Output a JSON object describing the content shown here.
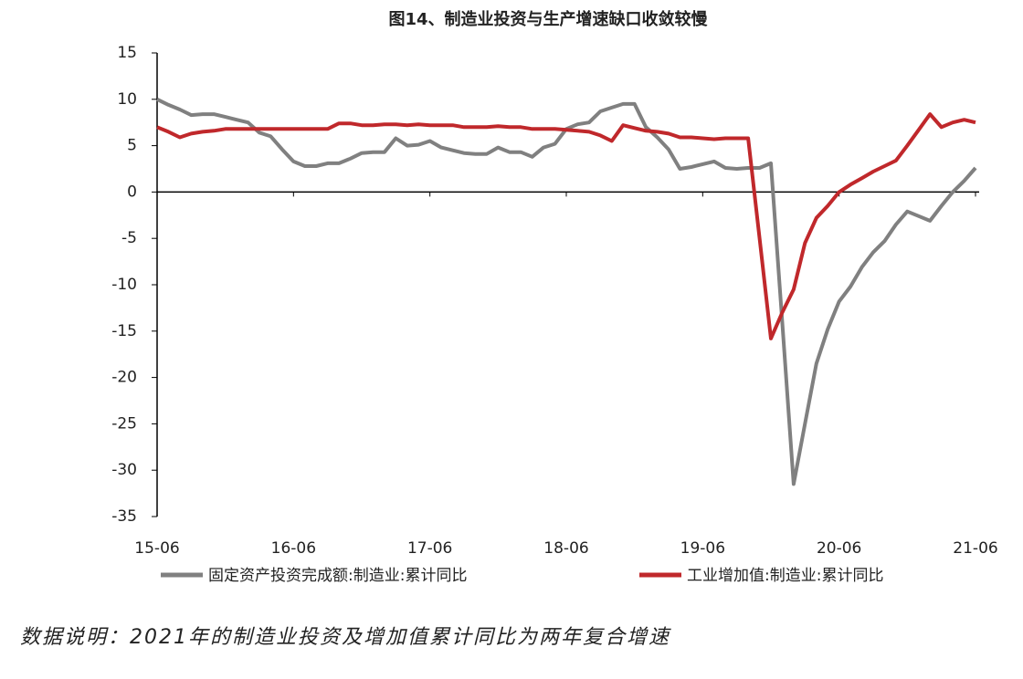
{
  "chart_data": {
    "type": "line",
    "title": "图14、制造业投资与生产增速缺口收敛较慢",
    "categories": [
      "15-06",
      null,
      null,
      null,
      null,
      null,
      null,
      null,
      null,
      null,
      null,
      null,
      "16-06",
      null,
      null,
      null,
      null,
      null,
      null,
      null,
      null,
      null,
      null,
      null,
      "17-06",
      null,
      null,
      null,
      null,
      null,
      null,
      null,
      null,
      null,
      null,
      null,
      "18-06",
      null,
      null,
      null,
      null,
      null,
      null,
      null,
      null,
      null,
      null,
      null,
      "19-06",
      null,
      null,
      null,
      null,
      null,
      null,
      null,
      null,
      null,
      null,
      null,
      "20-06",
      null,
      null,
      null,
      null,
      null,
      null,
      null,
      null,
      null,
      null,
      null,
      "21-06"
    ],
    "series": [
      {
        "name": "固定资产投资完成额:制造业:累计同比",
        "color": "#808080",
        "values": [
          10.0,
          9.4,
          8.9,
          8.3,
          8.4,
          8.4,
          8.1,
          7.8,
          7.5,
          6.4,
          6.0,
          4.6,
          3.3,
          2.8,
          2.8,
          3.1,
          3.1,
          3.6,
          4.2,
          4.3,
          4.3,
          5.8,
          5.0,
          5.1,
          5.5,
          4.8,
          4.5,
          4.2,
          4.1,
          4.1,
          4.8,
          4.3,
          4.3,
          3.8,
          4.8,
          5.2,
          6.8,
          7.3,
          7.5,
          8.7,
          9.1,
          9.5,
          9.5,
          7.0,
          5.9,
          4.6,
          2.5,
          2.7,
          3.0,
          3.3,
          2.6,
          2.5,
          2.6,
          2.6,
          3.1,
          -14.0,
          -31.5,
          -25.0,
          -18.5,
          -14.8,
          -11.8,
          -10.2,
          -8.1,
          -6.5,
          -5.3,
          -3.5,
          -2.1,
          -2.6,
          -3.1,
          -1.5,
          0.0,
          1.2,
          2.6
        ]
      },
      {
        "name": "工业增加值:制造业:累计同比",
        "color": "#c0282b",
        "values": [
          7.0,
          6.5,
          5.9,
          6.3,
          6.5,
          6.6,
          6.8,
          6.8,
          6.8,
          6.8,
          6.8,
          6.8,
          6.8,
          6.8,
          6.8,
          6.8,
          7.4,
          7.4,
          7.2,
          7.2,
          7.3,
          7.3,
          7.2,
          7.3,
          7.2,
          7.2,
          7.2,
          7.0,
          7.0,
          7.0,
          7.1,
          7.0,
          7.0,
          6.8,
          6.8,
          6.8,
          6.7,
          6.6,
          6.5,
          6.1,
          5.5,
          7.2,
          6.9,
          6.6,
          6.5,
          6.3,
          5.9,
          5.9,
          5.8,
          5.7,
          5.8,
          5.8,
          5.8,
          -5.0,
          -15.8,
          -13.0,
          -10.5,
          -5.5,
          -2.8,
          -1.5,
          0.0,
          0.8,
          1.5,
          2.2,
          2.8,
          3.4,
          5.0,
          6.7,
          8.4,
          7.0,
          7.5,
          7.8,
          7.5
        ]
      }
    ],
    "ylim": [
      -35,
      15
    ],
    "yticks": [
      15,
      10,
      5,
      0,
      -5,
      -10,
      -15,
      -20,
      -25,
      -30,
      -35
    ],
    "note": "数据说明：2021年的制造业投资及增加值累计同比为两年复合增速"
  }
}
